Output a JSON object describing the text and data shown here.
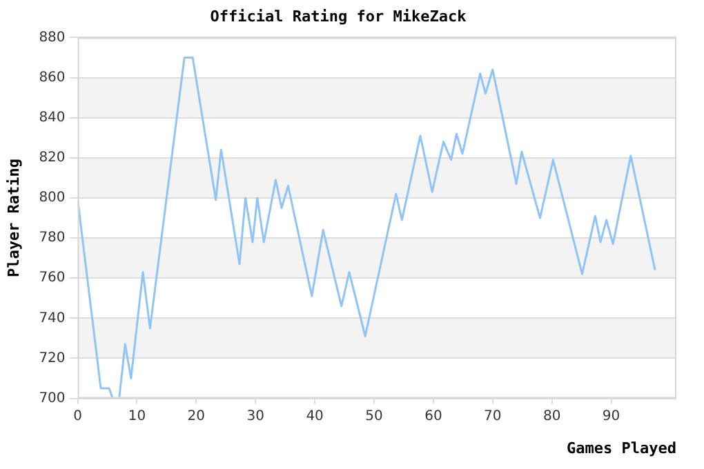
{
  "chart_data": {
    "type": "line",
    "title": "Official Rating for MikeZack",
    "xlabel": "Games Played",
    "ylabel": "Player Rating",
    "series": [
      {
        "color": "#90c4f7",
        "x": [
          0,
          3.9,
          5.3,
          5.9,
          7,
          8,
          9,
          11,
          12.2,
          18,
          19.4,
          23.3,
          24.2,
          27.3,
          28.3,
          29.5,
          30.3,
          31.4,
          33.4,
          34.4,
          35.5,
          39.5,
          41.4,
          44.5,
          45.8,
          48.5,
          53.7,
          54.7,
          57.8,
          59.8,
          61.7,
          63,
          63.9,
          64.9,
          67.9,
          68.8,
          70,
          74,
          74.9,
          78,
          80.2,
          85.1,
          87.3,
          88.2,
          89.2,
          90.3,
          93.3,
          97.4
        ],
        "values": [
          799,
          705,
          705,
          700,
          700,
          727,
          710,
          763,
          735,
          870,
          870,
          799,
          824,
          767,
          800,
          778,
          800,
          778,
          809,
          795,
          806,
          751,
          784,
          746,
          763,
          731,
          802,
          789,
          831,
          803,
          828,
          819,
          832,
          822,
          862,
          852,
          864,
          807,
          823,
          790,
          819,
          762,
          791,
          778,
          789,
          777,
          821,
          764
        ]
      }
    ],
    "xlim": [
      0,
      101
    ],
    "xticks": [
      0,
      10,
      20,
      30,
      40,
      50,
      60,
      70,
      80,
      90
    ],
    "ylim": [
      700,
      880
    ],
    "yticks": [
      700,
      720,
      740,
      760,
      780,
      800,
      820,
      840,
      860,
      880
    ],
    "grid": "y",
    "legend": false,
    "marker": "none",
    "line_style": "solid"
  }
}
